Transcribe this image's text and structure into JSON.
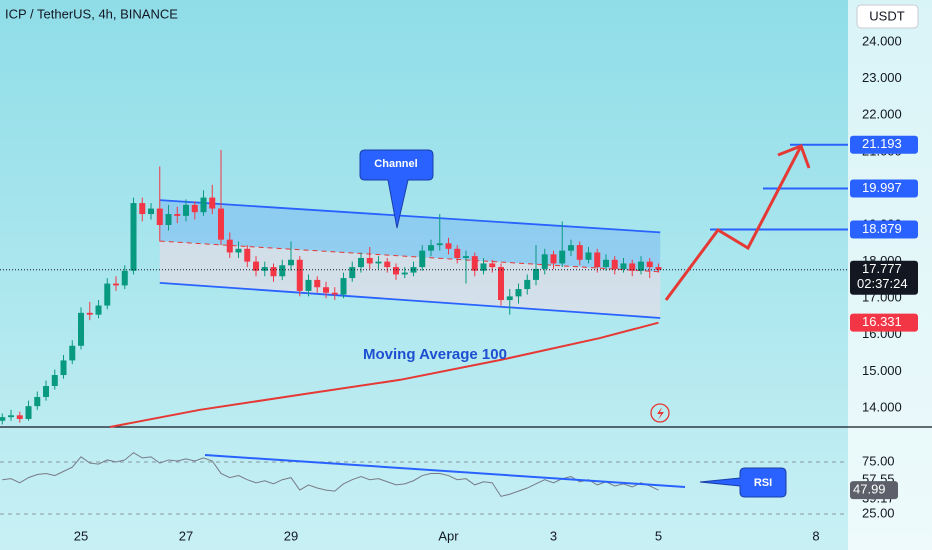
{
  "chart_data": {
    "type": "candlestick",
    "title": "ICP / TetherUS, 4h, BINANCE",
    "currency": "USDT",
    "up_color": "#089981",
    "down_color": "#f23645",
    "x": [
      -9,
      -8,
      -7,
      -6,
      -5,
      -4,
      -3,
      -2,
      -1,
      0,
      1,
      2,
      3,
      4,
      5,
      6,
      7,
      8,
      9,
      10,
      11,
      12,
      13,
      14,
      15,
      16,
      17,
      18,
      19,
      20,
      21,
      22,
      23,
      24,
      25,
      26,
      27,
      28,
      29,
      30,
      31,
      32,
      33,
      34,
      35,
      36,
      37,
      38,
      39,
      40,
      41,
      42,
      43,
      44,
      45,
      46,
      47,
      48,
      49,
      50,
      51,
      52,
      53,
      54,
      55,
      56,
      57,
      58,
      59,
      60,
      61,
      62,
      63,
      64,
      65,
      66
    ],
    "xlim": [
      -9.26,
      87.66
    ],
    "xticks": [
      {
        "value": 0,
        "label": "25"
      },
      {
        "value": 12,
        "label": "27"
      },
      {
        "value": 24,
        "label": "29"
      },
      {
        "value": 42,
        "label": "Apr"
      },
      {
        "value": 54,
        "label": "3"
      },
      {
        "value": 66,
        "label": "5"
      },
      {
        "value": 84,
        "label": "8"
      }
    ],
    "ylim": [
      13.48,
      25.15
    ],
    "yticks": [
      {
        "value": 14,
        "label": "14.000"
      },
      {
        "value": 15,
        "label": "15.000"
      },
      {
        "value": 16,
        "label": "16.000"
      },
      {
        "value": 17,
        "label": "17.000"
      },
      {
        "value": 18,
        "label": "18.000"
      },
      {
        "value": 19,
        "label": "19.000"
      },
      {
        "value": 20,
        "label": "20.000"
      },
      {
        "value": 21,
        "label": "21.000"
      },
      {
        "value": 22,
        "label": "22.000"
      },
      {
        "value": 23,
        "label": "23.000"
      },
      {
        "value": 24,
        "label": "24.000"
      }
    ],
    "ohlc": [
      [
        13.65,
        13.85,
        13.55,
        13.75
      ],
      [
        13.75,
        13.95,
        13.65,
        13.8
      ],
      [
        13.8,
        13.9,
        13.6,
        13.7
      ],
      [
        13.7,
        14.2,
        13.65,
        14.05
      ],
      [
        14.05,
        14.45,
        13.95,
        14.3
      ],
      [
        14.3,
        14.75,
        14.2,
        14.6
      ],
      [
        14.6,
        15.05,
        14.5,
        14.9
      ],
      [
        14.9,
        15.45,
        14.8,
        15.3
      ],
      [
        15.3,
        15.85,
        15.2,
        15.7
      ],
      [
        15.7,
        16.75,
        15.6,
        16.6
      ],
      [
        16.6,
        16.9,
        16.4,
        16.55
      ],
      [
        16.55,
        16.95,
        16.45,
        16.8
      ],
      [
        16.8,
        17.55,
        16.7,
        17.4
      ],
      [
        17.4,
        17.6,
        17.2,
        17.35
      ],
      [
        17.35,
        17.9,
        17.25,
        17.75
      ],
      [
        17.75,
        19.75,
        17.65,
        19.6
      ],
      [
        19.6,
        19.75,
        19.1,
        19.3
      ],
      [
        19.3,
        19.6,
        19.15,
        19.45
      ],
      [
        19.45,
        20.6,
        18.55,
        19.0
      ],
      [
        19.0,
        19.55,
        18.85,
        19.3
      ],
      [
        19.3,
        19.5,
        19.05,
        19.25
      ],
      [
        19.25,
        19.7,
        19.1,
        19.55
      ],
      [
        19.55,
        19.65,
        19.15,
        19.35
      ],
      [
        19.35,
        19.95,
        19.25,
        19.75
      ],
      [
        19.75,
        20.1,
        19.3,
        19.45
      ],
      [
        19.45,
        21.05,
        18.45,
        18.6
      ],
      [
        18.6,
        18.8,
        18.1,
        18.25
      ],
      [
        18.25,
        18.55,
        18.1,
        18.35
      ],
      [
        18.35,
        18.45,
        17.85,
        18.0
      ],
      [
        18.0,
        18.15,
        17.6,
        17.75
      ],
      [
        17.75,
        18.0,
        17.6,
        17.85
      ],
      [
        17.85,
        17.95,
        17.45,
        17.6
      ],
      [
        17.6,
        18.05,
        17.5,
        17.9
      ],
      [
        17.9,
        18.55,
        17.75,
        18.05
      ],
      [
        18.05,
        18.15,
        17.05,
        17.2
      ],
      [
        17.2,
        17.65,
        17.05,
        17.5
      ],
      [
        17.5,
        17.6,
        17.15,
        17.3
      ],
      [
        17.3,
        17.45,
        17.0,
        17.15
      ],
      [
        17.15,
        17.3,
        16.95,
        17.1
      ],
      [
        17.1,
        17.7,
        17.0,
        17.55
      ],
      [
        17.55,
        18.0,
        17.45,
        17.85
      ],
      [
        17.85,
        18.25,
        17.7,
        18.1
      ],
      [
        18.1,
        18.4,
        17.8,
        17.95
      ],
      [
        17.95,
        18.15,
        17.8,
        18.0
      ],
      [
        18.0,
        18.1,
        17.7,
        17.85
      ],
      [
        17.85,
        17.95,
        17.5,
        17.65
      ],
      [
        17.65,
        17.85,
        17.55,
        17.7
      ],
      [
        17.7,
        18.0,
        17.6,
        17.85
      ],
      [
        17.85,
        18.45,
        17.75,
        18.3
      ],
      [
        18.3,
        18.6,
        18.15,
        18.45
      ],
      [
        18.45,
        19.3,
        18.3,
        18.5
      ],
      [
        18.5,
        18.65,
        18.2,
        18.35
      ],
      [
        18.35,
        18.45,
        17.95,
        18.1
      ],
      [
        18.1,
        18.3,
        17.4,
        18.15
      ],
      [
        18.15,
        18.25,
        17.6,
        17.75
      ],
      [
        17.75,
        18.1,
        17.65,
        17.95
      ],
      [
        17.95,
        18.05,
        17.7,
        17.85
      ],
      [
        17.85,
        17.95,
        16.8,
        16.95
      ],
      [
        16.95,
        17.25,
        16.55,
        17.05
      ],
      [
        17.05,
        17.4,
        16.85,
        17.25
      ],
      [
        17.25,
        17.65,
        17.1,
        17.5
      ],
      [
        17.5,
        18.45,
        17.35,
        17.8
      ],
      [
        17.8,
        18.35,
        17.65,
        18.2
      ],
      [
        18.2,
        18.3,
        17.8,
        17.95
      ],
      [
        17.95,
        19.1,
        17.85,
        18.3
      ],
      [
        18.3,
        18.6,
        18.15,
        18.45
      ],
      [
        18.45,
        18.55,
        17.9,
        18.05
      ],
      [
        18.05,
        18.4,
        17.95,
        18.25
      ],
      [
        18.25,
        18.35,
        17.7,
        17.85
      ],
      [
        17.85,
        18.2,
        17.75,
        18.05
      ],
      [
        18.05,
        18.15,
        17.65,
        17.8
      ],
      [
        17.8,
        18.1,
        17.7,
        17.95
      ],
      [
        17.95,
        18.05,
        17.6,
        17.75
      ],
      [
        17.75,
        18.15,
        17.65,
        18.0
      ],
      [
        18.0,
        18.1,
        17.55,
        17.85
      ],
      [
        17.85,
        17.95,
        17.7,
        17.777
      ]
    ],
    "countdown": "02:37:24",
    "ma100": {
      "name": "Moving Average 100",
      "color": "#e53935",
      "x": [
        3.3,
        13.6,
        25,
        36.5,
        47.9,
        59.3,
        66
      ],
      "values": [
        13.48,
        13.95,
        14.36,
        14.77,
        15.31,
        15.91,
        16.331
      ]
    },
    "channel": {
      "label": "Channel",
      "color": "#2962ff",
      "x": [
        9,
        66.2
      ],
      "upper": [
        19.68,
        18.8
      ],
      "middle": [
        18.56,
        17.72
      ],
      "lower": [
        17.42,
        16.46
      ]
    },
    "targets": {
      "color": "#2962ff",
      "values": [
        21.193,
        19.997,
        18.879
      ]
    },
    "rsi": {
      "name": "RSI",
      "color": "#787b86",
      "ylim": [
        12.5,
        108.7
      ],
      "yticks": [
        {
          "value": 75,
          "label": "75.00"
        },
        57.55,
        39.17,
        {
          "value": 25,
          "label": "25.00"
        }
      ],
      "values": [
        58,
        59,
        55,
        60,
        63,
        64,
        62,
        66,
        70,
        80,
        74,
        73,
        77,
        75,
        77,
        84,
        79,
        80,
        74,
        77,
        76,
        78,
        76,
        79,
        76,
        64,
        60,
        62,
        58,
        55,
        57,
        54,
        58,
        60,
        48,
        53,
        50,
        48,
        47,
        54,
        58,
        61,
        58,
        59,
        56,
        53,
        54,
        57,
        62,
        64,
        64,
        62,
        58,
        59,
        53,
        56,
        55,
        42,
        44,
        47,
        50,
        54,
        58,
        55,
        59,
        61,
        56,
        58,
        53,
        56,
        52,
        54,
        51,
        55,
        52,
        47.99
      ]
    }
  }
}
